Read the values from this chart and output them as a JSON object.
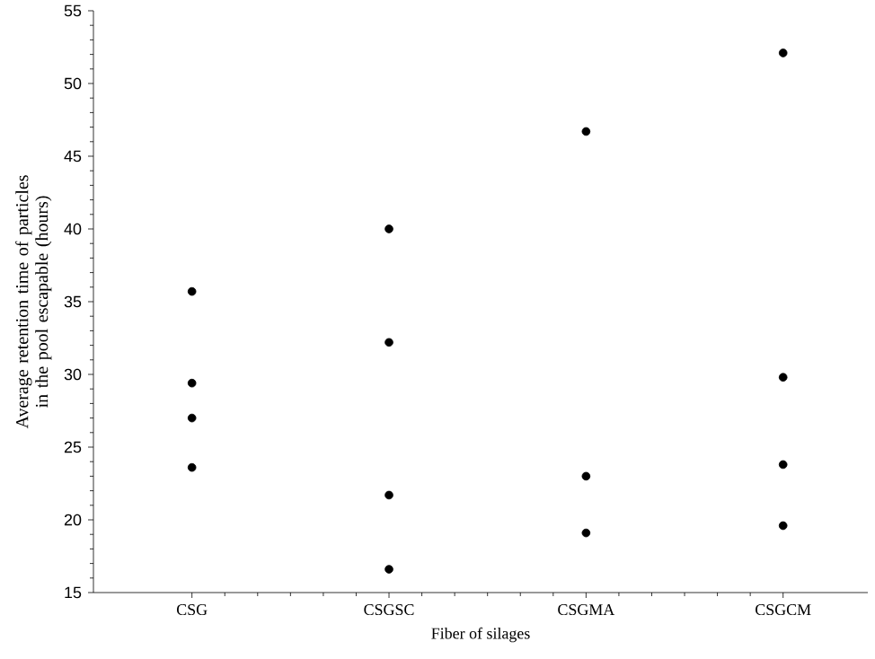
{
  "chart_data": {
    "type": "scatter",
    "xlabel": "Fiber of silages",
    "ylabel": "Average retention time of particles in the pool escapable (hours)",
    "categories": [
      "CSG",
      "CSGSC",
      "CSGMA",
      "CSGCM"
    ],
    "series": [
      {
        "color": "#000000",
        "values": [
          35.7,
          40.0,
          46.7,
          52.1
        ]
      },
      {
        "color": "#000000",
        "values": [
          29.4,
          32.2,
          23.0,
          29.8
        ]
      },
      {
        "color": "#000000",
        "values": [
          27.0,
          21.7,
          19.1,
          23.8
        ]
      },
      {
        "color": "#000000",
        "values": [
          23.6,
          16.6,
          null,
          19.6
        ]
      }
    ],
    "ylim": [
      15,
      55
    ],
    "yticks": [
      15,
      20,
      25,
      30,
      35,
      40,
      45,
      50,
      55
    ],
    "grid": false,
    "marker": "circle"
  }
}
